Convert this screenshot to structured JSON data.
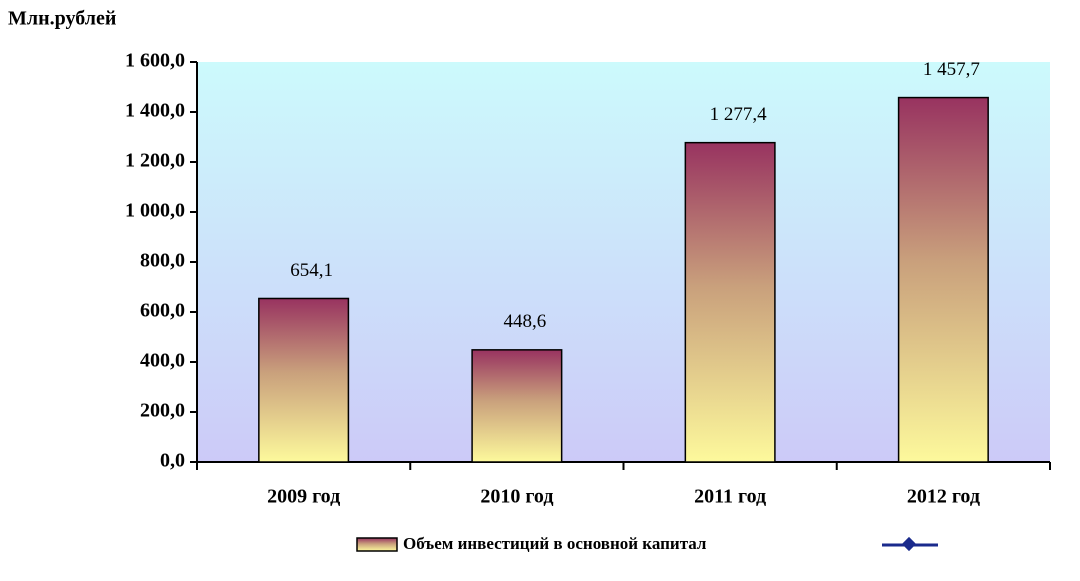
{
  "chart_data": {
    "type": "bar",
    "y_label": "Млн.рублей",
    "categories": [
      "2009 год",
      "2010 год",
      "2011 год",
      "2012 год"
    ],
    "series": [
      {
        "name": "Объем инвестиций в основной капитал",
        "values": [
          654.1,
          448.6,
          1277.4,
          1457.7
        ],
        "value_labels": [
          "654,1",
          "448,6",
          "1 277,4",
          "1 457,7"
        ]
      }
    ],
    "ylim": [
      0,
      1600
    ],
    "yticks": [
      {
        "value": 0,
        "label": "0,0"
      },
      {
        "value": 200,
        "label": "200,0"
      },
      {
        "value": 400,
        "label": "400,0"
      },
      {
        "value": 600,
        "label": "600,0"
      },
      {
        "value": 800,
        "label": "800,0"
      },
      {
        "value": 1000,
        "label": "1 000,0"
      },
      {
        "value": 1200,
        "label": "1 200,0"
      },
      {
        "value": 1400,
        "label": "1 400,0"
      },
      {
        "value": 1600,
        "label": "1 600,0"
      }
    ],
    "grid": false
  }
}
